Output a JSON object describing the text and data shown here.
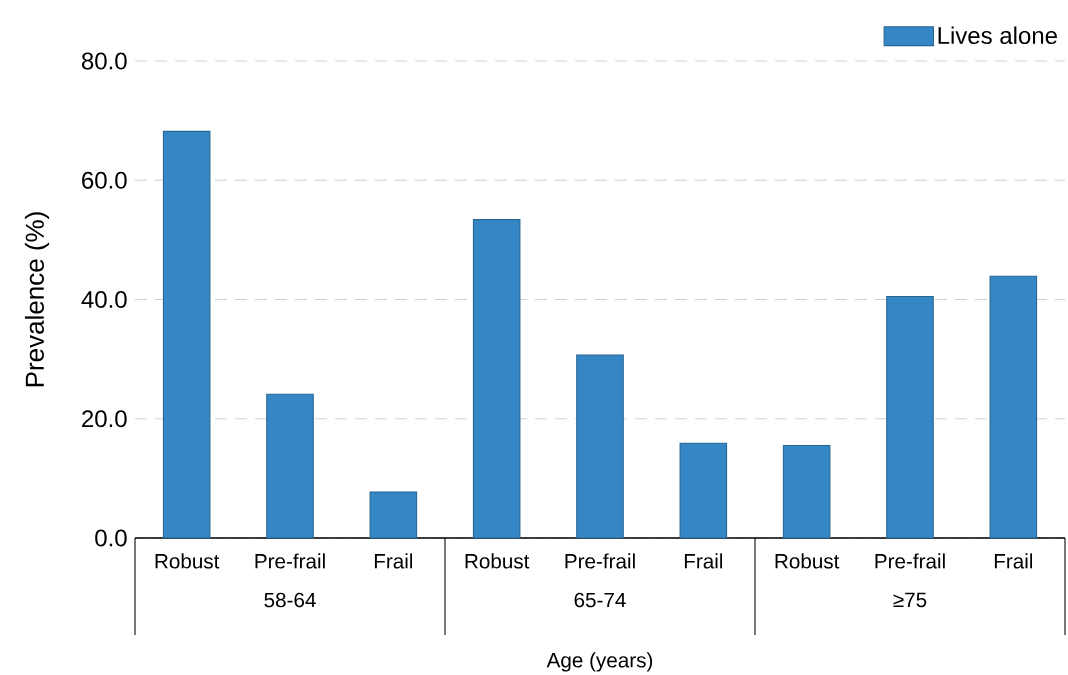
{
  "chart_data": {
    "type": "bar",
    "categories": [
      "Robust",
      "Pre-frail",
      "Frail",
      "Robust",
      "Pre-frail",
      "Frail",
      "Robust",
      "Pre-frail",
      "Frail"
    ],
    "series": [
      {
        "name": "Lives alone",
        "color": "#3487c4",
        "values": [
          68.2,
          24.1,
          7.7,
          53.4,
          30.7,
          15.9,
          15.5,
          40.5,
          43.9
        ]
      }
    ],
    "ylabel": "Prevalence (%)",
    "xlabel": "Age (years)",
    "annotations": [
      "58-64",
      "65-74",
      "≥75"
    ],
    "ylim": [
      0,
      80
    ],
    "yticks": [
      {
        "value": 0,
        "label": "0.0"
      },
      {
        "value": 20,
        "label": "20.0"
      },
      {
        "value": 40,
        "label": "40.0"
      },
      {
        "value": 60,
        "label": "60.0"
      },
      {
        "value": 80,
        "label": "80.0"
      }
    ],
    "grid": "y",
    "legend": "top right"
  }
}
